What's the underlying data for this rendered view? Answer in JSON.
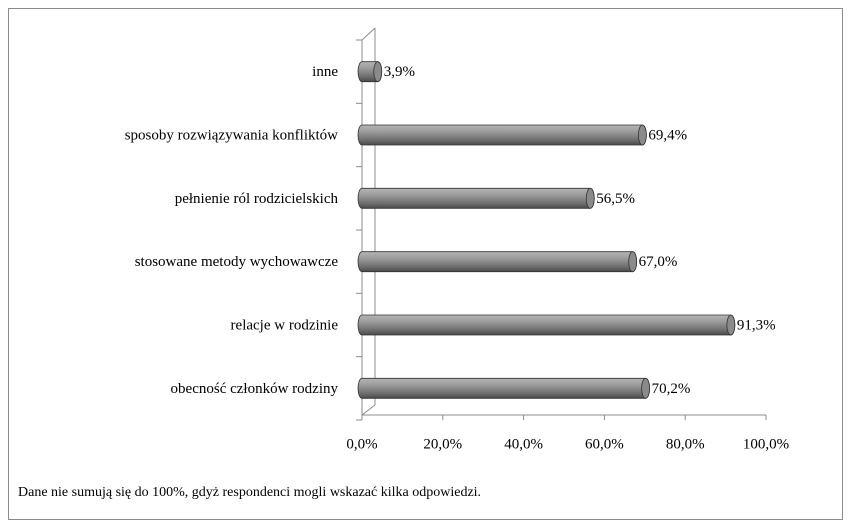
{
  "chart_data": {
    "type": "bar",
    "orientation": "horizontal",
    "categories": [
      "inne",
      "sposoby rozwiązywania konfliktów",
      "pełnienie ról rodzicielskich",
      "stosowane metody wychowawcze",
      "relacje w rodzinie",
      "obecność członków rodziny"
    ],
    "values": [
      3.9,
      69.4,
      56.5,
      67.0,
      91.3,
      70.2
    ],
    "value_labels": [
      "3,9%",
      "69,4%",
      "56,5%",
      "67,0%",
      "91,3%",
      "70,2%"
    ],
    "color": "#8a8a8a",
    "xlim": [
      0,
      100
    ],
    "xticks": [
      {
        "value": 0,
        "label": "0,0%"
      },
      {
        "value": 20,
        "label": "20,0%"
      },
      {
        "value": 40,
        "label": "40,0%"
      },
      {
        "value": 60,
        "label": "60,0%"
      },
      {
        "value": 80,
        "label": "80,0%"
      },
      {
        "value": 100,
        "label": "100,0%"
      }
    ],
    "grid": false,
    "note": "Dane nie sumują się do 100%, gdyż respondenci mogli wskazać kilka odpowiedzi."
  }
}
